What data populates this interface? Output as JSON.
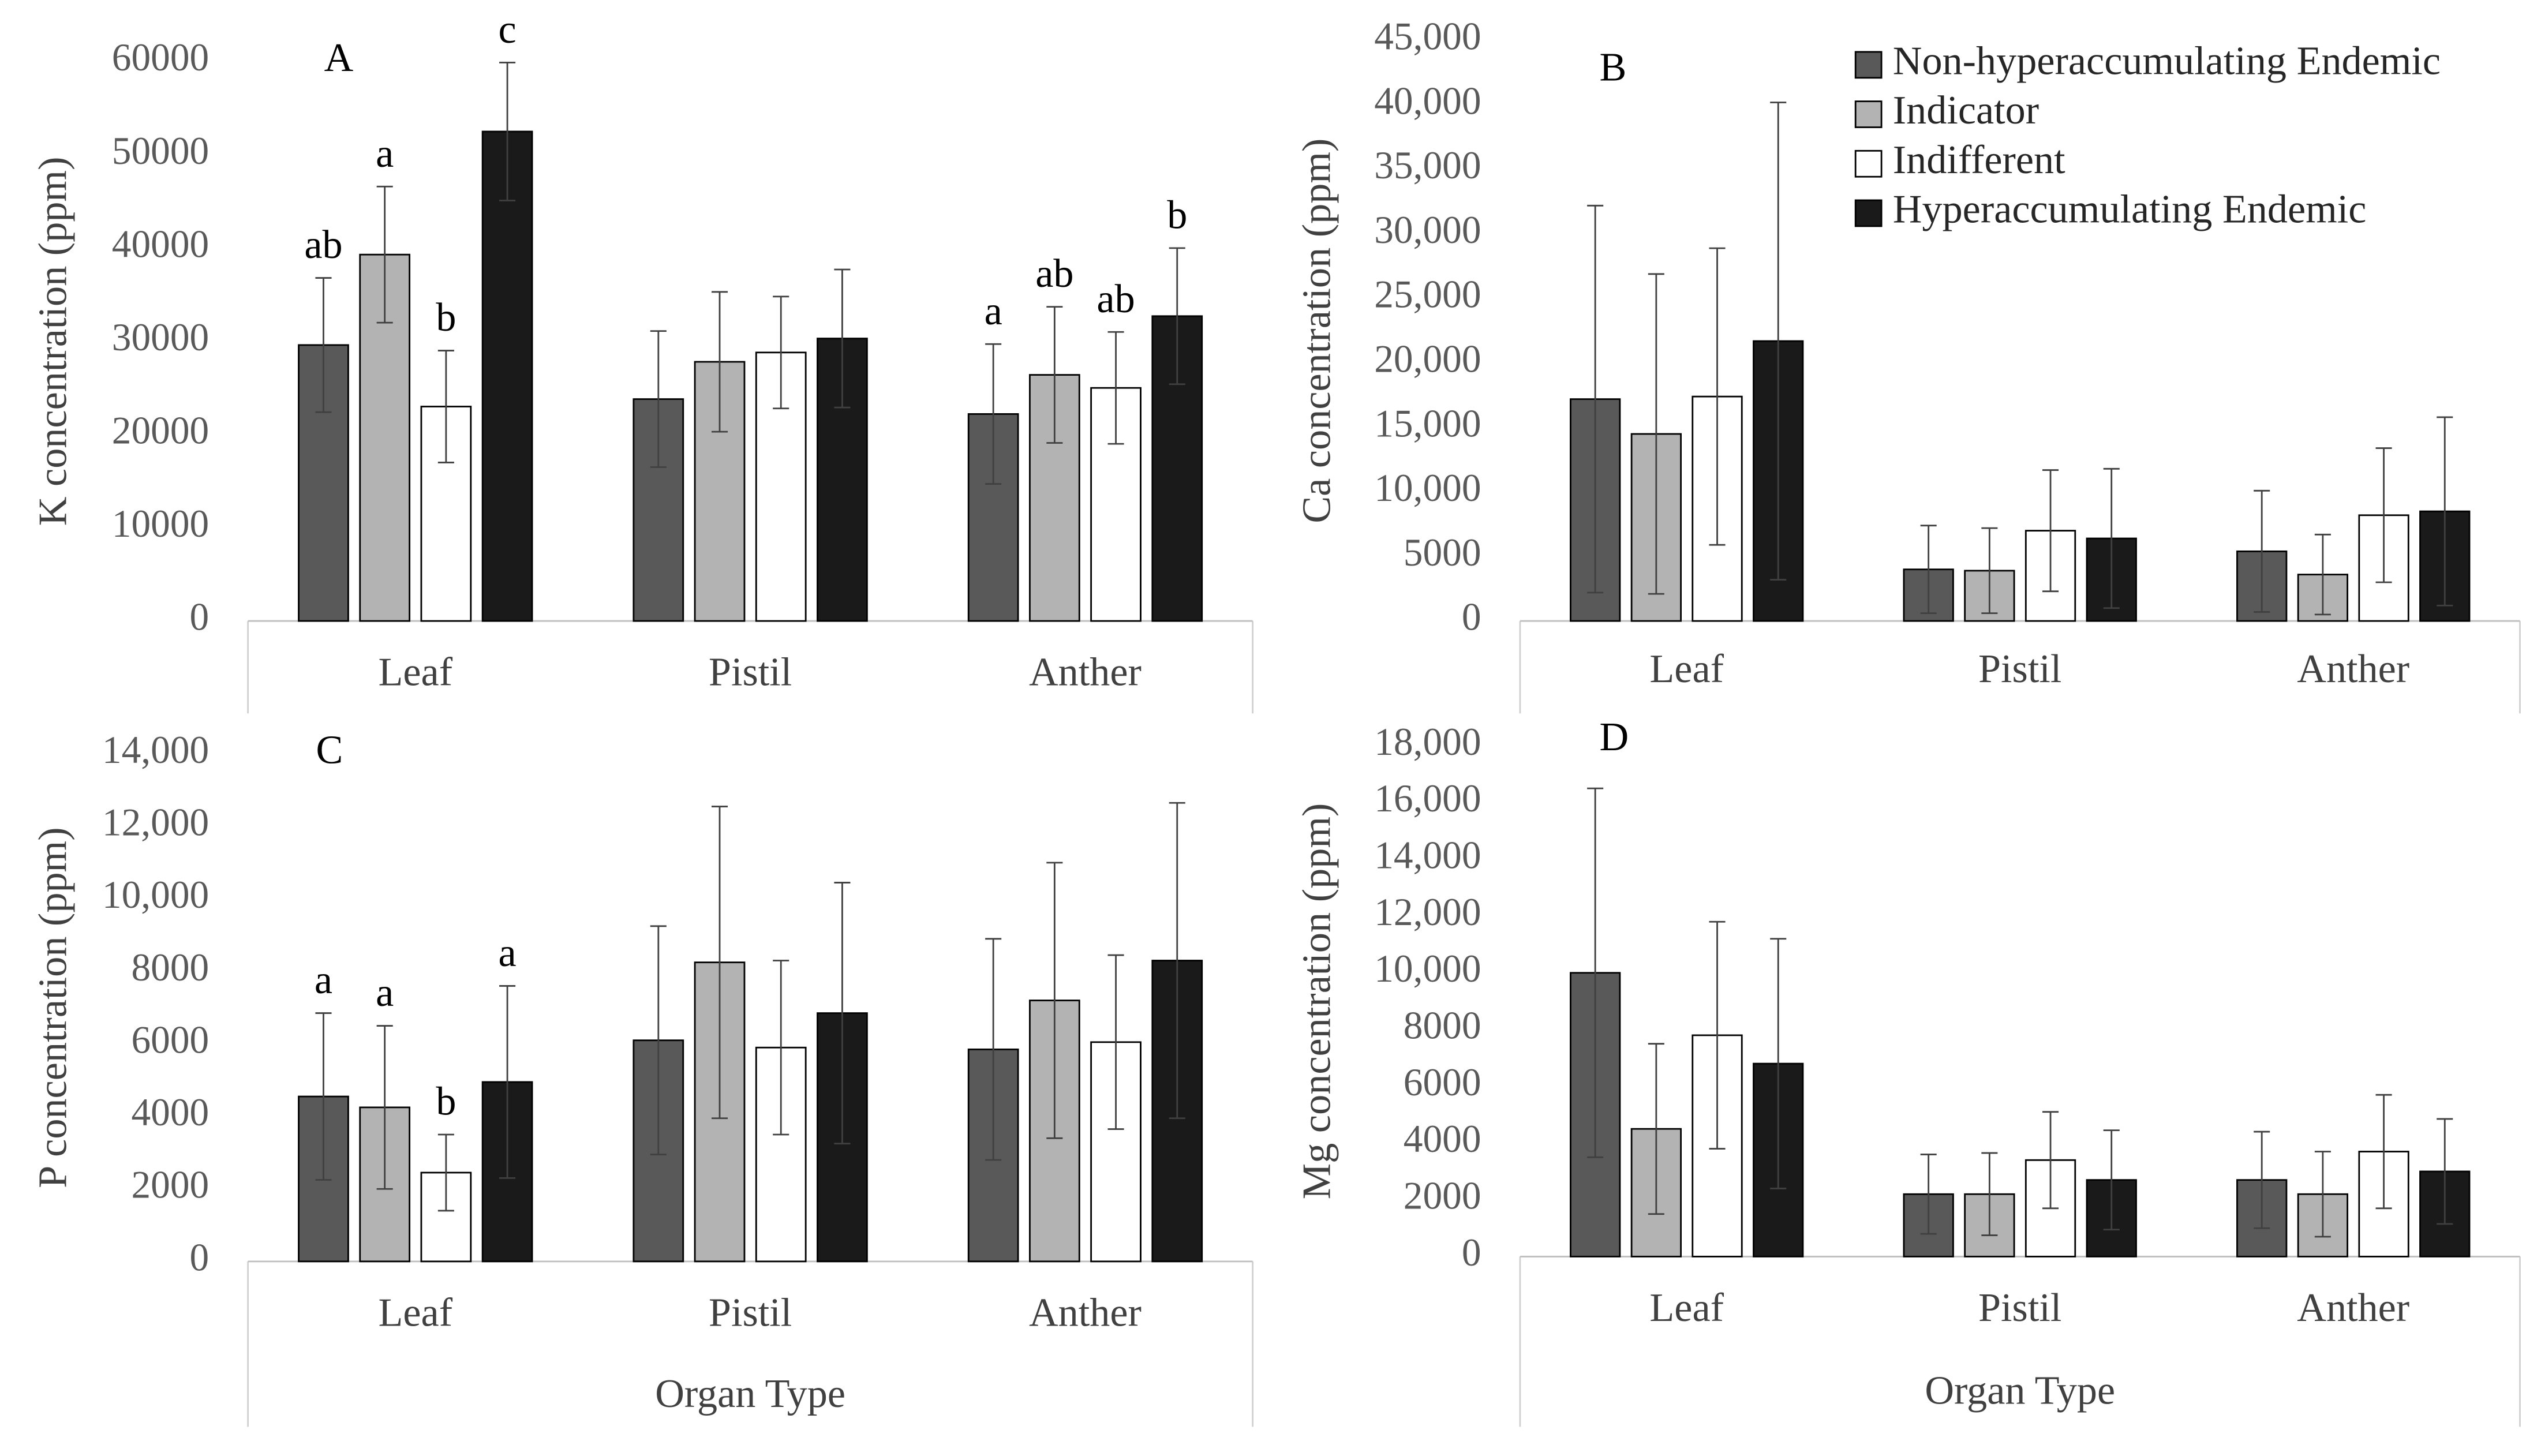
{
  "chart_data": [
    {
      "type": "bar",
      "panel_label": "A",
      "ylabel": "K concentration (ppm)",
      "categories": [
        "Leaf",
        "Pistil",
        "Anther"
      ],
      "ylim": [
        0,
        60000
      ],
      "yticks": [
        0,
        10000,
        20000,
        30000,
        40000,
        50000,
        60000
      ],
      "series": [
        {
          "color": "#595959",
          "values": [
            29600,
            23800,
            22200
          ],
          "errors": [
            7200,
            7300,
            7500
          ],
          "letters": [
            "ab",
            null,
            "a"
          ]
        },
        {
          "color": "#b3b3b3",
          "values": [
            39300,
            27800,
            26400
          ],
          "errors": [
            7300,
            7500,
            7300
          ],
          "letters": [
            "a",
            null,
            "ab"
          ]
        },
        {
          "color": "#ffffff",
          "values": [
            23000,
            28800,
            25000
          ],
          "errors": [
            6000,
            6000,
            6000
          ],
          "letters": [
            "b",
            null,
            "ab"
          ]
        },
        {
          "color": "#1a1a1a",
          "values": [
            52500,
            30300,
            32700
          ],
          "errors": [
            7400,
            7400,
            7300
          ],
          "letters": [
            "c",
            null,
            "b"
          ]
        }
      ]
    },
    {
      "type": "bar",
      "panel_label": "B",
      "ylabel": "Ca concentration (ppm)",
      "categories": [
        "Leaf",
        "Pistil",
        "Anther"
      ],
      "ylim": [
        0,
        45000
      ],
      "yticks": [
        0,
        5000,
        {
          "value": 10000,
          "label": "10,000"
        },
        {
          "value": 15000,
          "label": "15,000"
        },
        {
          "value": 20000,
          "label": "20,000"
        },
        {
          "value": 25000,
          "label": "25,000"
        },
        {
          "value": 30000,
          "label": "30,000"
        },
        {
          "value": 35000,
          "label": "35,000"
        },
        {
          "value": 40000,
          "label": "40,000"
        },
        {
          "value": 45000,
          "label": "45,000"
        }
      ],
      "legend": "top-right",
      "series": [
        {
          "name": "Non-hyperaccumulating Endemic",
          "color": "#595959",
          "values": [
            17200,
            4000,
            5400
          ],
          "errors": [
            15000,
            3400,
            4700
          ]
        },
        {
          "name": "Indicator",
          "color": "#b3b3b3",
          "values": [
            14500,
            3900,
            3600
          ],
          "errors": [
            12400,
            3300,
            3100
          ]
        },
        {
          "name": "Indifferent",
          "color": "#ffffff",
          "values": [
            17400,
            7000,
            8200
          ],
          "errors": [
            11500,
            4700,
            5200
          ]
        },
        {
          "name": "Hyperaccumulating Endemic",
          "color": "#1a1a1a",
          "values": [
            21700,
            6400,
            8500
          ],
          "errors": [
            18500,
            5400,
            7300
          ]
        }
      ]
    },
    {
      "type": "bar",
      "panel_label": "C",
      "ylabel": "P concentration (ppm)",
      "xlabel": "Organ Type",
      "categories": [
        "Leaf",
        "Pistil",
        "Anther"
      ],
      "ylim": [
        0,
        14000
      ],
      "yticks": [
        0,
        2000,
        4000,
        6000,
        8000,
        {
          "value": 10000,
          "label": "10,000"
        },
        {
          "value": 12000,
          "label": "12,000"
        },
        {
          "value": 14000,
          "label": "14,000"
        }
      ],
      "series": [
        {
          "color": "#595959",
          "values": [
            4550,
            6100,
            5850
          ],
          "errors": [
            2300,
            3150,
            3050
          ],
          "letters": [
            "a",
            null,
            null
          ]
        },
        {
          "color": "#b3b3b3",
          "values": [
            4250,
            8250,
            7200
          ],
          "errors": [
            2250,
            4300,
            3800
          ],
          "letters": [
            "a",
            null,
            null
          ]
        },
        {
          "color": "#ffffff",
          "values": [
            2450,
            5900,
            6050
          ],
          "errors": [
            1050,
            2400,
            2400
          ],
          "letters": [
            "b",
            null,
            null
          ]
        },
        {
          "color": "#1a1a1a",
          "values": [
            4950,
            6850,
            8300
          ],
          "errors": [
            2650,
            3600,
            4350
          ],
          "letters": [
            "a",
            null,
            null
          ]
        }
      ]
    },
    {
      "type": "bar",
      "panel_label": "D",
      "ylabel": "Mg concentration (ppm)",
      "xlabel": "Organ Type",
      "categories": [
        "Leaf",
        "Pistil",
        "Anther"
      ],
      "ylim": [
        0,
        18000
      ],
      "yticks": [
        0,
        2000,
        4000,
        6000,
        8000,
        {
          "value": 10000,
          "label": "10,000"
        },
        {
          "value": 12000,
          "label": "12,000"
        },
        {
          "value": 14000,
          "label": "14,000"
        },
        {
          "value": 16000,
          "label": "16,000"
        },
        {
          "value": 18000,
          "label": "18,000"
        }
      ],
      "series": [
        {
          "color": "#595959",
          "values": [
            10000,
            2200,
            2700
          ],
          "errors": [
            6500,
            1400,
            1700
          ]
        },
        {
          "color": "#b3b3b3",
          "values": [
            4500,
            2200,
            2200
          ],
          "errors": [
            3000,
            1450,
            1500
          ]
        },
        {
          "color": "#ffffff",
          "values": [
            7800,
            3400,
            3700
          ],
          "errors": [
            4000,
            1700,
            2000
          ]
        },
        {
          "color": "#1a1a1a",
          "values": [
            6800,
            2700,
            3000
          ],
          "errors": [
            4400,
            1750,
            1850
          ]
        }
      ]
    }
  ]
}
